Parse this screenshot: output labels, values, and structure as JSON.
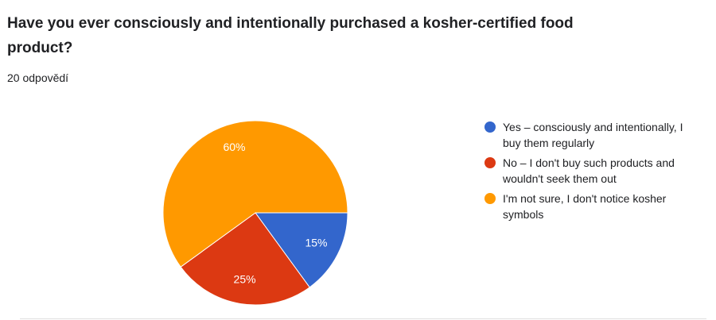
{
  "chart_data": {
    "type": "pie",
    "title": "Have you ever consciously and intentionally purchased a kosher-certified food product?",
    "subtitle": "20 odpovědí",
    "categories": [
      "Yes – consciously and intentionally, I buy them regularly",
      "No – I don't buy such products and wouldn't seek them out",
      "I'm not sure, I don't notice kosher symbols"
    ],
    "values": [
      15,
      25,
      60
    ],
    "value_labels": [
      "15%",
      "25%",
      "60%"
    ],
    "colors": [
      "#3366cc",
      "#dc3912",
      "#ff9900"
    ],
    "legend": "right"
  }
}
